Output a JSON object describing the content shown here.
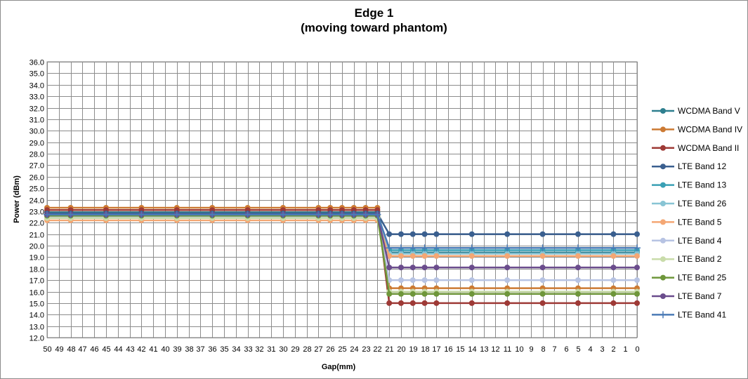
{
  "chart_data": {
    "type": "line",
    "title": "Edge 1",
    "subtitle": "(moving toward phantom)",
    "xlabel": "Gap(mm)",
    "ylabel": "Power (dBm)",
    "ylim": [
      12.0,
      36.0
    ],
    "ytick_step": 1.0,
    "grid": true,
    "legend_position": "right",
    "x_categories": [
      "50",
      "49",
      "48",
      "47",
      "46",
      "45",
      "44",
      "43",
      "42",
      "41",
      "40",
      "39",
      "38",
      "37",
      "36",
      "35",
      "34",
      "33",
      "32",
      "31",
      "30",
      "29",
      "28",
      "27",
      "26",
      "25",
      "24",
      "23",
      "22",
      "21",
      "20",
      "19",
      "18",
      "17",
      "16",
      "15",
      "14",
      "13",
      "12",
      "11",
      "10",
      "9",
      "8",
      "7",
      "6",
      "5",
      "4",
      "3",
      "2",
      "1",
      "0"
    ],
    "x_points": [
      "50",
      "48",
      "45",
      "42",
      "39",
      "36",
      "33",
      "30",
      "27",
      "26",
      "25",
      "24",
      "23",
      "22",
      "21",
      "20",
      "19",
      "18",
      "17",
      "14",
      "11",
      "8",
      "5",
      "2",
      "0"
    ],
    "series": [
      {
        "name": "WCDMA Band V",
        "color": "#2e7f8f",
        "marker": "circle",
        "values": [
          22.9,
          22.9,
          22.9,
          22.9,
          22.9,
          22.9,
          22.9,
          22.9,
          22.9,
          22.9,
          22.9,
          22.9,
          22.9,
          22.9,
          19.4,
          19.4,
          19.4,
          19.4,
          19.4,
          19.4,
          19.4,
          19.4,
          19.4,
          19.4,
          19.4
        ]
      },
      {
        "name": "WCDMA Band IV",
        "color": "#cc7a33",
        "marker": "circle",
        "values": [
          23.3,
          23.3,
          23.3,
          23.3,
          23.3,
          23.3,
          23.3,
          23.3,
          23.3,
          23.3,
          23.3,
          23.3,
          23.3,
          23.3,
          16.3,
          16.3,
          16.3,
          16.3,
          16.3,
          16.3,
          16.3,
          16.3,
          16.3,
          16.3,
          16.3
        ]
      },
      {
        "name": "WCDMA Band II",
        "color": "#9e3a36",
        "marker": "circle",
        "values": [
          23.1,
          23.1,
          23.1,
          23.1,
          23.1,
          23.1,
          23.1,
          23.1,
          23.1,
          23.1,
          23.1,
          23.1,
          23.1,
          23.1,
          15.0,
          15.0,
          15.0,
          15.0,
          15.0,
          15.0,
          15.0,
          15.0,
          15.0,
          15.0,
          15.0
        ]
      },
      {
        "name": "LTE Band 12",
        "color": "#3a5f8f",
        "marker": "circle",
        "values": [
          22.8,
          22.8,
          22.8,
          22.8,
          22.8,
          22.8,
          22.8,
          22.8,
          22.8,
          22.8,
          22.8,
          22.8,
          22.8,
          22.8,
          21.0,
          21.0,
          21.0,
          21.0,
          21.0,
          21.0,
          21.0,
          21.0,
          21.0,
          21.0,
          21.0
        ]
      },
      {
        "name": "LTE Band 13",
        "color": "#3aa0b5",
        "marker": "circle",
        "values": [
          22.6,
          22.6,
          22.6,
          22.6,
          22.6,
          22.6,
          22.6,
          22.6,
          22.6,
          22.6,
          22.6,
          22.6,
          22.6,
          22.6,
          19.6,
          19.6,
          19.6,
          19.6,
          19.6,
          19.6,
          19.6,
          19.6,
          19.6,
          19.6,
          19.6
        ]
      },
      {
        "name": "LTE Band 26",
        "color": "#88c4d4",
        "marker": "circle",
        "values": [
          22.4,
          22.4,
          22.4,
          22.4,
          22.4,
          22.4,
          22.4,
          22.4,
          22.4,
          22.4,
          22.4,
          22.4,
          22.4,
          22.4,
          19.3,
          19.3,
          19.3,
          19.3,
          19.3,
          19.3,
          19.3,
          19.3,
          19.3,
          19.3,
          19.3
        ]
      },
      {
        "name": "LTE Band 5",
        "color": "#f4a774",
        "marker": "circle",
        "values": [
          22.2,
          22.2,
          22.2,
          22.2,
          22.2,
          22.2,
          22.2,
          22.2,
          22.2,
          22.2,
          22.2,
          22.2,
          22.2,
          22.2,
          19.1,
          19.1,
          19.1,
          19.1,
          19.1,
          19.1,
          19.1,
          19.1,
          19.1,
          19.1,
          19.1
        ]
      },
      {
        "name": "LTE Band 4",
        "color": "#b7c3e3",
        "marker": "circle",
        "values": [
          22.5,
          22.5,
          22.5,
          22.5,
          22.5,
          22.5,
          22.5,
          22.5,
          22.5,
          22.5,
          22.5,
          22.5,
          22.5,
          22.5,
          17.0,
          17.0,
          17.0,
          17.0,
          17.0,
          17.0,
          17.0,
          17.0,
          17.0,
          17.0,
          17.0
        ]
      },
      {
        "name": "LTE Band 2",
        "color": "#c9dcaa",
        "marker": "circle",
        "values": [
          22.4,
          22.4,
          22.4,
          22.4,
          22.4,
          22.4,
          22.4,
          22.4,
          22.4,
          22.4,
          22.4,
          22.4,
          22.4,
          22.4,
          16.0,
          16.0,
          16.0,
          16.0,
          16.0,
          16.0,
          16.0,
          16.0,
          16.0,
          16.0,
          16.0
        ]
      },
      {
        "name": "LTE Band 25",
        "color": "#6e963a",
        "marker": "circle",
        "values": [
          22.6,
          22.6,
          22.6,
          22.6,
          22.6,
          22.6,
          22.6,
          22.6,
          22.6,
          22.6,
          22.6,
          22.6,
          22.6,
          22.6,
          15.8,
          15.8,
          15.8,
          15.8,
          15.8,
          15.8,
          15.8,
          15.8,
          15.8,
          15.8,
          15.8
        ]
      },
      {
        "name": "LTE Band 7",
        "color": "#6a4c8c",
        "marker": "circle",
        "values": [
          22.7,
          22.7,
          22.7,
          22.7,
          22.7,
          22.7,
          22.7,
          22.7,
          22.7,
          22.7,
          22.7,
          22.7,
          22.7,
          22.7,
          18.1,
          18.1,
          18.1,
          18.1,
          18.1,
          18.1,
          18.1,
          18.1,
          18.1,
          18.1,
          18.1
        ]
      },
      {
        "name": "LTE Band 41",
        "color": "#4a7ab5",
        "marker": "plus",
        "values": [
          22.7,
          22.7,
          22.7,
          22.7,
          22.7,
          22.7,
          22.7,
          22.7,
          22.7,
          22.7,
          22.7,
          22.7,
          22.7,
          22.7,
          19.8,
          19.8,
          19.8,
          19.8,
          19.8,
          19.8,
          19.8,
          19.8,
          19.8,
          19.8,
          19.8
        ]
      }
    ]
  }
}
